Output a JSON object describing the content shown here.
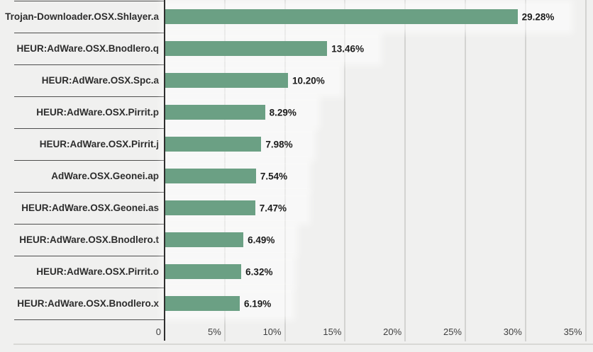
{
  "chart_data": {
    "type": "bar",
    "orientation": "horizontal",
    "title": "",
    "xlabel": "",
    "ylabel": "",
    "categories": [
      "Trojan-Downloader.OSX.Shlayer.a",
      "HEUR:AdWare.OSX.Bnodlero.q",
      "HEUR:AdWare.OSX.Spc.a",
      "HEUR:AdWare.OSX.Pirrit.p",
      "HEUR:AdWare.OSX.Pirrit.j",
      "AdWare.OSX.Geonei.ap",
      "HEUR:AdWare.OSX.Geonei.as",
      "HEUR:AdWare.OSX.Bnodlero.t",
      "HEUR:AdWare.OSX.Pirrit.o",
      "HEUR:AdWare.OSX.Bnodlero.x"
    ],
    "values": [
      29.28,
      13.46,
      10.2,
      8.29,
      7.98,
      7.54,
      7.47,
      6.49,
      6.32,
      6.19
    ],
    "value_labels": [
      "29.28%",
      "13.46%",
      "10.20%",
      "8.29%",
      "7.98%",
      "7.54%",
      "7.47%",
      "6.49%",
      "6.32%",
      "6.19%"
    ],
    "x_ticks": [
      {
        "value": 0,
        "label": "0"
      },
      {
        "value": 5,
        "label": "5%"
      },
      {
        "value": 10,
        "label": "10%"
      },
      {
        "value": 15,
        "label": "15%"
      },
      {
        "value": 20,
        "label": "20%"
      },
      {
        "value": 25,
        "label": "25%"
      },
      {
        "value": 30,
        "label": "30%"
      },
      {
        "value": 35,
        "label": "35%"
      }
    ],
    "xlim": [
      0,
      35.6
    ],
    "grid": true,
    "legend": "none",
    "bar_color": "#6ba084"
  },
  "colors": {
    "background": "#f0f0ef",
    "bar": "#6ba084",
    "axis_line": "#2f2f2f",
    "row_divider": "#4d4d4d",
    "gridline": "#d3d3d1",
    "value_text": "#1c1c1c",
    "category_text": "#2d2d2d",
    "tick_text": "#3e3e3e"
  }
}
